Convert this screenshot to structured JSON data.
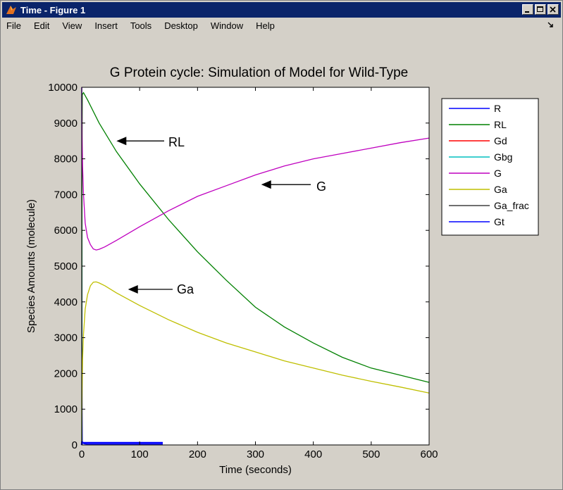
{
  "window": {
    "title": "Time - Figure 1"
  },
  "menu": [
    "File",
    "Edit",
    "View",
    "Insert",
    "Tools",
    "Desktop",
    "Window",
    "Help"
  ],
  "colors": {
    "titlebar": "#0a246a",
    "background": "#d4d0c8"
  },
  "chart_data": {
    "type": "line",
    "title": "G Protein cycle: Simulation of Model for Wild-Type",
    "xlabel": "Time (seconds)",
    "ylabel": "Species Amounts (molecule)",
    "xlim": [
      0,
      600
    ],
    "ylim": [
      0,
      10000
    ],
    "xticks": [
      "0",
      "100",
      "200",
      "300",
      "400",
      "500",
      "600"
    ],
    "yticks": [
      "0",
      "1000",
      "2000",
      "3000",
      "4000",
      "5000",
      "6000",
      "7000",
      "8000",
      "9000",
      "10000"
    ],
    "grid": false,
    "legend_position": "outside-right",
    "series": [
      {
        "name": "R",
        "color": "#0000ff",
        "x": [
          0,
          0.5,
          1,
          2,
          5,
          10,
          20,
          50,
          100,
          140
        ],
        "y": [
          10000,
          2000,
          100,
          50,
          30,
          20,
          20,
          20,
          20,
          20
        ]
      },
      {
        "name": "RL",
        "color": "#008000",
        "x": [
          0,
          0.5,
          1,
          3,
          10,
          30,
          60,
          100,
          150,
          200,
          250,
          300,
          350,
          400,
          450,
          500,
          550,
          600
        ],
        "y": [
          0,
          8000,
          9800,
          9850,
          9650,
          9000,
          8200,
          7300,
          6300,
          5400,
          4600,
          3850,
          3300,
          2850,
          2450,
          2150,
          1950,
          1750
        ]
      },
      {
        "name": "Gd",
        "color": "#ff0000",
        "x": [],
        "y": []
      },
      {
        "name": "Gbg",
        "color": "#00bfbf",
        "x": [],
        "y": []
      },
      {
        "name": "G",
        "color": "#bf00bf",
        "x": [
          0,
          0.5,
          1.5,
          3,
          6,
          10,
          15,
          20,
          25,
          30,
          40,
          60,
          100,
          150,
          200,
          250,
          300,
          350,
          400,
          450,
          500,
          550,
          600
        ],
        "y": [
          10000,
          8700,
          7800,
          7000,
          6200,
          5800,
          5600,
          5480,
          5450,
          5470,
          5540,
          5720,
          6100,
          6550,
          6950,
          7250,
          7550,
          7800,
          8000,
          8150,
          8300,
          8450,
          8580
        ]
      },
      {
        "name": "Ga",
        "color": "#bfbf00",
        "x": [
          0,
          0.5,
          1.5,
          3,
          6,
          10,
          15,
          20,
          25,
          30,
          40,
          60,
          100,
          150,
          200,
          250,
          300,
          350,
          400,
          450,
          500,
          550,
          600
        ],
        "y": [
          0,
          1300,
          2400,
          3100,
          3800,
          4200,
          4450,
          4550,
          4560,
          4530,
          4450,
          4250,
          3900,
          3500,
          3150,
          2850,
          2600,
          2350,
          2150,
          1950,
          1780,
          1620,
          1450
        ]
      },
      {
        "name": "Ga_frac",
        "color": "#404040",
        "x": [],
        "y": []
      },
      {
        "name": "Gt",
        "color": "#0000ff",
        "x": [
          0,
          0.5,
          1,
          140
        ],
        "y": [
          0,
          100,
          60,
          60
        ]
      }
    ],
    "annotations": [
      {
        "text": "RL",
        "arrow_to": [
          60,
          8500
        ]
      },
      {
        "text": "G",
        "arrow_to": [
          310,
          7280
        ]
      },
      {
        "text": "Ga",
        "arrow_to": [
          80,
          4350
        ]
      }
    ]
  }
}
